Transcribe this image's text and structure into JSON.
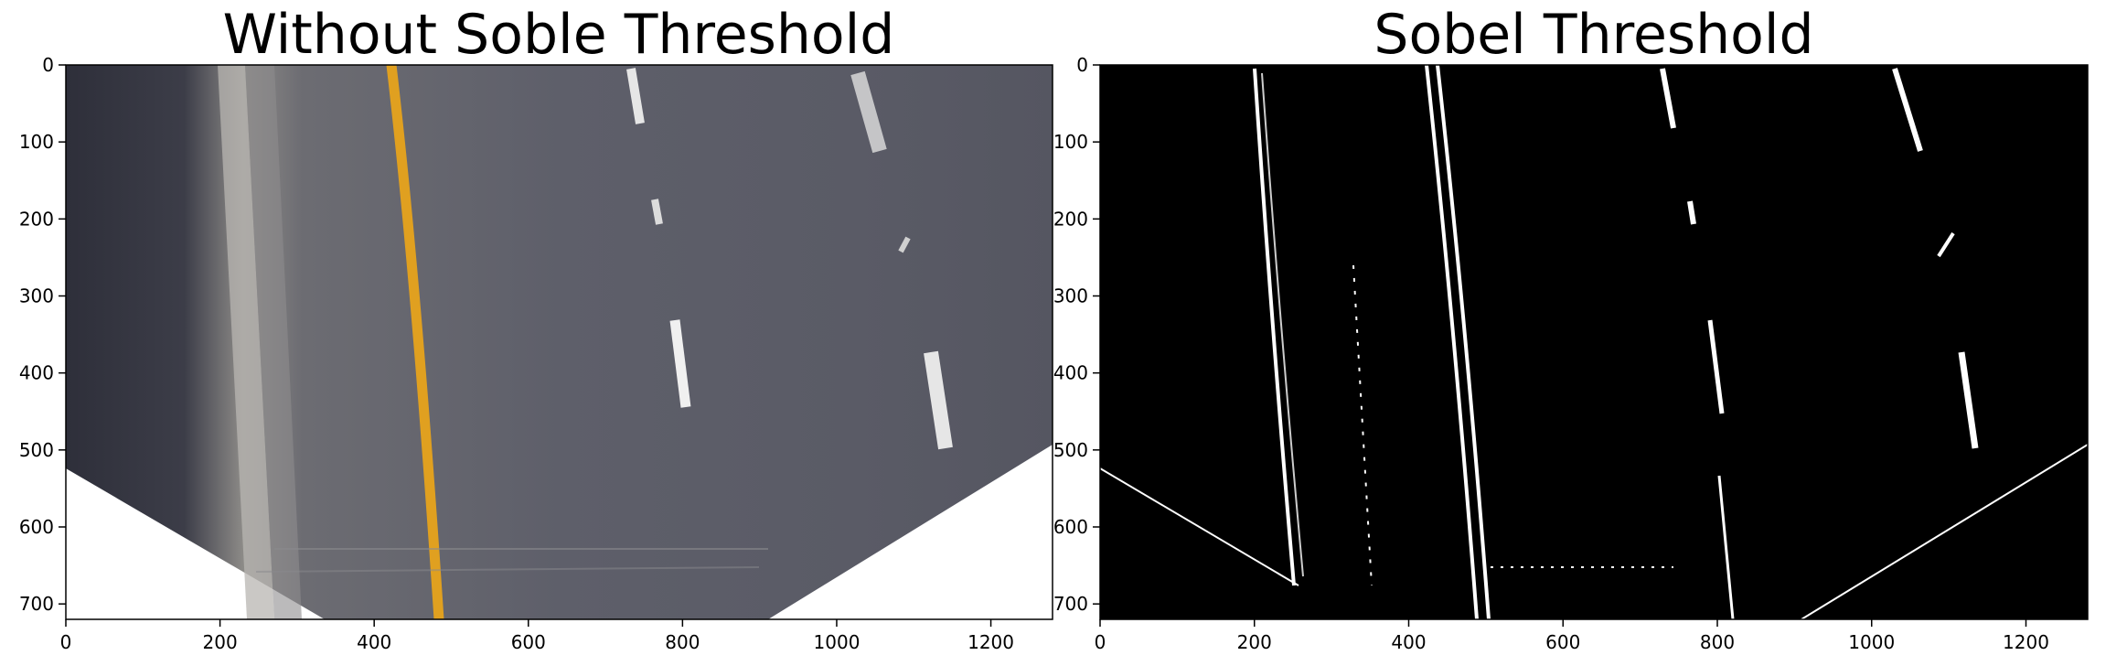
{
  "chart_data": [
    {
      "type": "image",
      "title": "Without Soble Threshold",
      "xlim": [
        0,
        1280
      ],
      "ylim": [
        720,
        0
      ],
      "xticks": [
        0,
        200,
        400,
        600,
        800,
        1000,
        1200
      ],
      "yticks": [
        0,
        100,
        200,
        300,
        400,
        500,
        600,
        700
      ],
      "xtick_labels": [
        "0",
        "200",
        "400",
        "600",
        "800",
        "1000",
        "1200"
      ],
      "ytick_labels": [
        "0",
        "100",
        "200",
        "300",
        "400",
        "500",
        "600",
        "700"
      ],
      "grid": false,
      "colors": {
        "road": "#5c5d68",
        "road_dark": "#3a3b44",
        "yellow_line": "#e0a020",
        "white_line": "#e8e8e8",
        "shoulder": "#8c8a88",
        "background": "#000000"
      }
    },
    {
      "type": "image",
      "title": "Sobel Threshold",
      "xlim": [
        0,
        1280
      ],
      "ylim": [
        720,
        0
      ],
      "xticks": [
        0,
        200,
        400,
        600,
        800,
        1000,
        1200
      ],
      "yticks": [
        0,
        100,
        200,
        300,
        400,
        500,
        600,
        700
      ],
      "xtick_labels": [
        "0",
        "200",
        "400",
        "600",
        "800",
        "1000",
        "1200"
      ],
      "ytick_labels": [
        "0",
        "100",
        "200",
        "300",
        "400",
        "500",
        "600",
        "700"
      ],
      "grid": false,
      "colors": {
        "background": "#000000",
        "edges": "#ffffff"
      }
    }
  ]
}
